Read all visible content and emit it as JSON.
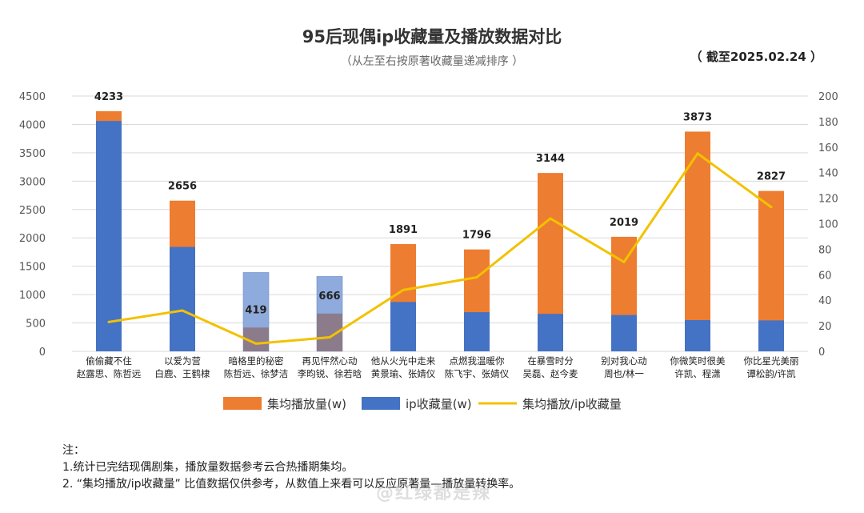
{
  "header": {
    "title": "95后现偶ip收藏量及播放数据对比",
    "subtitle": "（从左至右按原著收藏量递减排序 ）",
    "date": "（ 截至2025.02.24 ）"
  },
  "colors": {
    "play": "#ED7D31",
    "ip": "#4472C4",
    "ratio": "#F2C200",
    "ip_unfinished": "#8FAADC",
    "play_unfinished": "#8C7B8A"
  },
  "chart_data": {
    "type": "bar",
    "categories": [
      [
        "偷偷藏不住",
        "赵露思、陈哲远"
      ],
      [
        "以爱为营",
        "白鹿、王鹤棣"
      ],
      [
        "暗格里的秘密",
        "陈哲远、徐梦洁"
      ],
      [
        "再见怦然心动",
        "李昀锐、徐若晗"
      ],
      [
        "他从火光中走来",
        "黄景瑜、张婧仪"
      ],
      [
        "点燃我温暖你",
        "陈飞宇、张婧仪"
      ],
      [
        "在暴雪时分",
        "吴磊、赵今麦"
      ],
      [
        "别对我心动",
        "周也/林一"
      ],
      [
        "你微笑时很美",
        "许凯、程潇"
      ],
      [
        "你比星光美丽",
        "谭松韵/许凯"
      ]
    ],
    "series": [
      {
        "name": "集均播放量(w)",
        "type": "bar",
        "axis": "left",
        "values": [
          4233,
          2656,
          419,
          666,
          1891,
          1796,
          3144,
          2019,
          3873,
          2827
        ]
      },
      {
        "name": "ip收藏量(w)",
        "type": "bar",
        "axis": "left",
        "values": [
          4060,
          1840,
          1390,
          1320,
          870,
          690,
          660,
          640,
          550,
          545
        ]
      },
      {
        "name": "集均播放/ip收藏量",
        "type": "line",
        "axis": "right",
        "values": [
          23,
          32,
          6,
          11,
          48,
          58,
          104,
          70,
          155,
          113
        ]
      }
    ],
    "data_labels": [
      "4233",
      "2656",
      "419",
      "666",
      "1891",
      "1796",
      "3144",
      "2019",
      "3873",
      "2827"
    ],
    "y_left": {
      "min": 0,
      "max": 4500,
      "ticks": [
        "0",
        "500",
        "1000",
        "1500",
        "2000",
        "2500",
        "3000",
        "3500",
        "4000",
        "4500"
      ]
    },
    "y_right": {
      "min": 0,
      "max": 200,
      "ticks": [
        "0",
        "20",
        "40",
        "60",
        "80",
        "100",
        "120",
        "140",
        "160",
        "180",
        "200"
      ]
    },
    "grid": true,
    "legend": "bottom"
  },
  "notes": {
    "title": "注：",
    "line1": "1.统计已完结现偶剧集，播放量数据参考云合热播期集均。",
    "line2": "2. “集均播放/ip收藏量” 比值数据仅供参考，从数值上来看可以反应原著量—播放量转换率。"
  },
  "watermark": "@红绿都是辣"
}
